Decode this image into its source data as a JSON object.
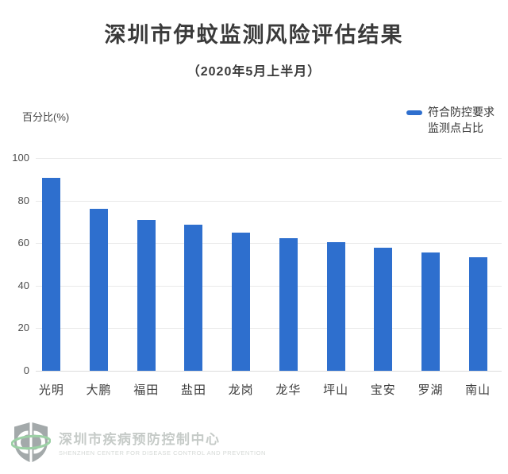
{
  "header": {
    "title": "深圳市伊蚊监测风险评估结果",
    "subtitle": "（2020年5月上半月）"
  },
  "chart": {
    "y_axis_title": "百分比(%)",
    "legend": {
      "line1": "符合防控要求",
      "line2": "监测点占比",
      "swatch_color": "#2e6fce"
    }
  },
  "chart_data": {
    "type": "bar",
    "title": "深圳市伊蚊监测风险评估结果",
    "subtitle": "（2020年5月上半月）",
    "series_name": "符合防控要求监测点占比",
    "categories": [
      "光明",
      "大鹏",
      "福田",
      "盐田",
      "龙岗",
      "龙华",
      "坪山",
      "宝安",
      "罗湖",
      "南山"
    ],
    "values": [
      90.5,
      76,
      71,
      68.5,
      65,
      62.5,
      60.5,
      58,
      55.5,
      53.5
    ],
    "ylabel": "百分比(%)",
    "ylim": [
      0,
      100
    ],
    "yticks": [
      0,
      20,
      40,
      60,
      80,
      100
    ],
    "bar_color": "#2e6fce",
    "gridline_color": "#e9e9e9",
    "grid": true,
    "legend_position": "top-right"
  },
  "footer": {
    "org_cn": "深圳市疾病预防控制中心",
    "org_en": "SHENZHEN CENTER FOR DISEASE CONTROL AND PREVENTION"
  }
}
